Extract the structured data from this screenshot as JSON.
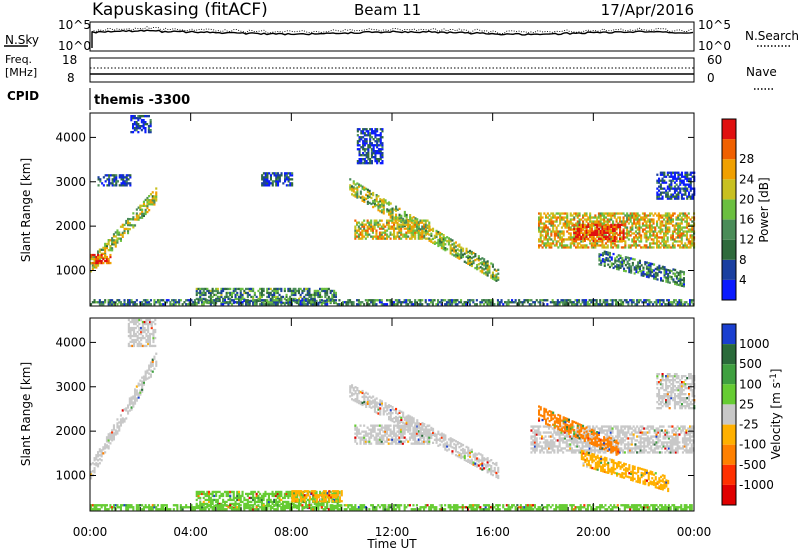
{
  "header": {
    "station": "Kapuskasing (fitACF)",
    "beam": "Beam 11",
    "date": "17/Apr/2016"
  },
  "strips": {
    "nsky_label": "N.Sky",
    "nsky_ticks": [
      "10^5",
      "10^0"
    ],
    "nsearch_label": "N.Search",
    "nsearch_ticks": [
      "10^5",
      "10^0"
    ],
    "freq_label_1": "Freq.",
    "freq_label_2": "[MHz]",
    "freq_ticks": [
      "18",
      "8"
    ],
    "nave_label": "Nave",
    "nave_ticks": [
      "60",
      "0"
    ],
    "cpid_label": "CPID",
    "cpid_value": "themis -3300"
  },
  "chart_data": [
    {
      "type": "heatmap",
      "name": "power",
      "ylabel": "Slant Range [km]",
      "yticks": [
        "1000",
        "2000",
        "3000",
        "4000"
      ],
      "ylim": [
        200,
        4550
      ],
      "xlabel": "Time UT",
      "xticks": [
        "00:00",
        "04:00",
        "08:00",
        "12:00",
        "16:00",
        "20:00",
        "00:00"
      ],
      "xlim_hours": [
        0,
        24
      ],
      "colorbar_label": "Power [dB]",
      "colorbar_ticks": [
        "4",
        "8",
        "12",
        "16",
        "20",
        "24",
        "28"
      ],
      "colorbar_colors": [
        "#0a1aff",
        "#1a3fa0",
        "#2f6a3c",
        "#4a8c58",
        "#6bbf40",
        "#c8c020",
        "#f0a000",
        "#f06000",
        "#e01010"
      ],
      "regions": [
        {
          "t0": 0.0,
          "t1": 2.6,
          "r0": 1100,
          "r1": 2700,
          "band": "diagonal_up",
          "level": 0.55
        },
        {
          "t0": 0.0,
          "t1": 0.8,
          "r0": 1150,
          "r1": 1350,
          "band": "flat",
          "level": 0.85
        },
        {
          "t0": 0.3,
          "t1": 1.6,
          "r0": 2900,
          "r1": 3150,
          "band": "flat",
          "level": 0.15
        },
        {
          "t0": 1.6,
          "t1": 2.4,
          "r0": 4100,
          "r1": 4500,
          "band": "flat",
          "level": 0.15
        },
        {
          "t0": 4.2,
          "t1": 9.8,
          "r0": 250,
          "r1": 600,
          "band": "flat",
          "level": 0.35
        },
        {
          "t0": 6.8,
          "t1": 8.0,
          "r0": 2900,
          "r1": 3200,
          "band": "flat",
          "level": 0.15
        },
        {
          "t0": 10.3,
          "t1": 16.2,
          "r0": 2900,
          "r1": 900,
          "band": "diagonal_down",
          "level": 0.5
        },
        {
          "t0": 10.5,
          "t1": 13.5,
          "r0": 1700,
          "r1": 2150,
          "band": "flat",
          "level": 0.6
        },
        {
          "t0": 10.6,
          "t1": 11.6,
          "r0": 3400,
          "r1": 4200,
          "band": "flat",
          "level": 0.15
        },
        {
          "t0": 17.8,
          "t1": 24.0,
          "r0": 1500,
          "r1": 2300,
          "band": "flat",
          "level": 0.65
        },
        {
          "t0": 19.2,
          "t1": 21.2,
          "r0": 1650,
          "r1": 2050,
          "band": "flat",
          "level": 0.9
        },
        {
          "t0": 20.2,
          "t1": 23.6,
          "r0": 1300,
          "r1": 800,
          "band": "diagonal_down",
          "level": 0.3
        },
        {
          "t0": 22.5,
          "t1": 24.0,
          "r0": 2600,
          "r1": 3200,
          "band": "flat",
          "level": 0.15
        },
        {
          "t0": 0.0,
          "t1": 24.0,
          "r0": 220,
          "r1": 320,
          "band": "flat",
          "level": 0.3
        }
      ]
    },
    {
      "type": "heatmap",
      "name": "velocity",
      "ylabel": "Slant Range [km]",
      "yticks": [
        "1000",
        "2000",
        "3000",
        "4000"
      ],
      "ylim": [
        200,
        4550
      ],
      "xlabel": "Time UT",
      "xticks": [
        "00:00",
        "04:00",
        "08:00",
        "12:00",
        "16:00",
        "20:00",
        "00:00"
      ],
      "xlim_hours": [
        0,
        24
      ],
      "colorbar_label": "Velocity [m s^-1]",
      "colorbar_ticks": [
        "1000",
        "500",
        "100",
        "25",
        "-25",
        "-100",
        "-500",
        "-1000"
      ],
      "colorbar_colors": [
        "#1a3fd0",
        "#2a6a3a",
        "#3fa040",
        "#66cc33",
        "#c8c8c8",
        "#ffb000",
        "#ff8000",
        "#ff3000",
        "#e00000"
      ],
      "regions": [
        {
          "t0": 0.0,
          "t1": 2.6,
          "r0": 1100,
          "r1": 3600,
          "band": "diagonal_up",
          "color": "#c8c8c8"
        },
        {
          "t0": 1.5,
          "t1": 2.6,
          "r0": 3900,
          "r1": 4500,
          "band": "flat",
          "color": "#c8c8c8"
        },
        {
          "t0": 4.2,
          "t1": 10.0,
          "r0": 250,
          "r1": 650,
          "band": "flat",
          "color": "#66cc33"
        },
        {
          "t0": 8.0,
          "t1": 10.0,
          "r0": 400,
          "r1": 650,
          "band": "flat",
          "color": "#ffb000"
        },
        {
          "t0": 10.3,
          "t1": 16.2,
          "r0": 2900,
          "r1": 1100,
          "band": "diagonal_down",
          "color": "#c8c8c8"
        },
        {
          "t0": 10.5,
          "t1": 13.5,
          "r0": 1700,
          "r1": 2150,
          "band": "flat",
          "color": "#c8c8c8"
        },
        {
          "t0": 17.5,
          "t1": 24.0,
          "r0": 1500,
          "r1": 2100,
          "band": "flat",
          "color": "#c8c8c8"
        },
        {
          "t0": 17.8,
          "t1": 21.0,
          "r0": 2400,
          "r1": 1600,
          "band": "diagonal_down",
          "color": "#ff8000"
        },
        {
          "t0": 19.5,
          "t1": 23.0,
          "r0": 1400,
          "r1": 800,
          "band": "diagonal_down",
          "color": "#ffb000"
        },
        {
          "t0": 22.5,
          "t1": 24.0,
          "r0": 2500,
          "r1": 3300,
          "band": "flat",
          "color": "#c8c8c8"
        },
        {
          "t0": 0.0,
          "t1": 24.0,
          "r0": 220,
          "r1": 320,
          "band": "flat",
          "color": "#66cc33"
        }
      ]
    }
  ]
}
